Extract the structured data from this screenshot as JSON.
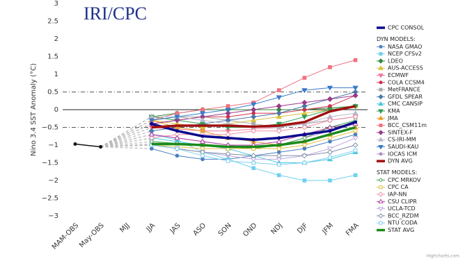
{
  "chart_data": {
    "type": "line",
    "title": "IRI/CPC",
    "y_label": "Nino 3.4 SST Anomaly (°C)",
    "credits": "Highcharts.com",
    "legend_headings": [
      "DYN MODELS:",
      "STAT MODELS:"
    ],
    "categories": [
      "MAM-OBS",
      "May-OBS",
      "MJJ",
      "JJA",
      "JAS",
      "ASO",
      "SON",
      "OND",
      "NDJ",
      "DJF",
      "JFM",
      "FMA"
    ],
    "ylim": [
      -3,
      3
    ],
    "yticks": [
      3,
      2.5,
      2,
      1.5,
      1,
      0.5,
      0,
      {
        "value": -0.5,
        "label": "−0.5"
      },
      {
        "value": -1,
        "label": "−1"
      },
      {
        "value": -1.5,
        "label": "−1.5"
      },
      {
        "value": -2,
        "label": "−2"
      },
      {
        "value": -2.5,
        "label": "−2.5"
      },
      {
        "value": -3,
        "label": "−3"
      }
    ],
    "plot_lines": [
      0.5,
      0,
      -0.5
    ],
    "observed": {
      "color": "#111111",
      "values": [
        -0.97,
        -1.05,
        null,
        null,
        null,
        null,
        null,
        null,
        null,
        null,
        null,
        null
      ]
    },
    "series": [
      {
        "name": "CPC CONSOL",
        "color": "#0a0a8c",
        "width": 3.5,
        "marker": "circle",
        "values": [
          null,
          null,
          null,
          -0.4,
          -0.6,
          -0.75,
          -0.8,
          -0.85,
          -0.8,
          -0.7,
          -0.6,
          -0.35
        ]
      },
      {
        "name": "NASA GMAO",
        "color": "#4a7fc1",
        "marker": "circle",
        "values": [
          null,
          null,
          null,
          -1.1,
          -1.3,
          -1.4,
          -1.4,
          -1.3,
          -1.2,
          -1.1,
          -0.9,
          -0.7
        ]
      },
      {
        "name": "NCEP CFSv2",
        "color": "#6fd0ef",
        "marker": "square",
        "values": [
          null,
          null,
          null,
          -0.7,
          -0.85,
          -1.2,
          -1.4,
          -1.65,
          -1.85,
          -2.0,
          -2.0,
          -1.85
        ]
      },
      {
        "name": "LDEO",
        "color": "#2e8b3a",
        "marker": "diamond",
        "values": [
          null,
          null,
          null,
          -0.2,
          -0.1,
          0,
          0,
          0,
          0,
          0,
          0.05,
          0.1
        ]
      },
      {
        "name": "AUS-ACCESS",
        "color": "#d8c23a",
        "marker": "triangle",
        "values": [
          null,
          null,
          null,
          -0.3,
          -0.4,
          -0.5,
          -0.4,
          -0.3,
          -0.2,
          -0.1,
          0,
          0.1
        ]
      },
      {
        "name": "ECMWF",
        "color": "#f07a9a",
        "marker": "triangle-down",
        "values": [
          null,
          null,
          null,
          -0.5,
          -0.55,
          -0.6,
          -0.6,
          -0.55,
          -0.5,
          -0.4,
          -0.3,
          -0.2
        ]
      },
      {
        "name": "COLA CCSM4",
        "color": "#d0304a",
        "marker": "circle",
        "values": [
          null,
          null,
          null,
          -0.4,
          -0.3,
          -0.2,
          -0.2,
          -0.1,
          -0.1,
          0,
          0.1,
          0.4
        ]
      },
      {
        "name": "MetFRANCE",
        "color": "#a8a8a8",
        "marker": "square",
        "values": [
          null,
          null,
          null,
          -0.3,
          -0.2,
          -0.2,
          -0.3,
          -0.4,
          -0.5,
          -0.4,
          -0.3,
          -0.2
        ]
      },
      {
        "name": "GFDL SPEAR",
        "color": "#4b78a8",
        "marker": "diamond",
        "values": [
          null,
          null,
          null,
          -0.6,
          -0.5,
          -0.4,
          -0.3,
          -0.2,
          -0.1,
          0.1,
          0.3,
          0.5
        ]
      },
      {
        "name": "CMC CANSIP",
        "color": "#4cc8e0",
        "marker": "triangle",
        "values": [
          null,
          null,
          null,
          -0.8,
          -0.9,
          -1.0,
          -1.1,
          -1.3,
          -1.5,
          -1.5,
          -1.4,
          -1.2
        ]
      },
      {
        "name": "KMA",
        "color": "#2f9a50",
        "marker": "triangle-down",
        "values": [
          null,
          null,
          null,
          -0.2,
          -0.3,
          -0.4,
          -0.5,
          -0.5,
          -0.4,
          -0.2,
          0,
          0.1
        ]
      },
      {
        "name": "JMA",
        "color": "#e8a030",
        "marker": "triangle",
        "values": [
          null,
          null,
          null,
          -0.3,
          -0.5,
          -0.6,
          -0.8,
          -0.9,
          -1.0,
          -0.9,
          -0.7,
          -0.5
        ]
      },
      {
        "name": "BCC_CSM11m",
        "color": "#f07080",
        "marker": "square",
        "values": [
          null,
          null,
          null,
          -0.3,
          -0.1,
          0,
          0.1,
          0.2,
          0.55,
          0.9,
          1.2,
          1.4
        ]
      },
      {
        "name": "SINTEX-F",
        "color": "#9a3a8a",
        "marker": "diamond",
        "values": [
          null,
          null,
          null,
          -0.4,
          -0.3,
          -0.2,
          -0.1,
          0,
          0.1,
          0.2,
          0.3,
          0.4
        ]
      },
      {
        "name": "CS-IRI-MM",
        "color": "#b8b8c8",
        "marker": "triangle",
        "values": [
          null,
          null,
          null,
          -0.2,
          -0.2,
          -0.3,
          -0.4,
          -0.5,
          -0.5,
          -0.4,
          -0.2,
          -0.1
        ]
      },
      {
        "name": "SAUDI-KAU",
        "color": "#3a7ac8",
        "marker": "triangle-down",
        "values": [
          null,
          null,
          null,
          -0.3,
          -0.2,
          -0.1,
          0,
          0.15,
          0.35,
          0.55,
          0.62,
          0.62
        ]
      },
      {
        "name": "IOCAS ICM",
        "color": "#b090d0",
        "marker": "circle",
        "values": [
          null,
          null,
          null,
          -0.7,
          -0.8,
          -0.9,
          -1.0,
          -1.1,
          -1.0,
          -0.8,
          -0.6,
          -0.4
        ]
      },
      {
        "name": "DYN AVG",
        "color": "#a01010",
        "width": 3.5,
        "values": [
          null,
          null,
          null,
          -0.5,
          -0.45,
          -0.45,
          -0.45,
          -0.48,
          -0.45,
          -0.35,
          -0.05,
          0.1
        ]
      },
      {
        "name": "CPC MRKOV",
        "color": "#3aa04a",
        "marker": "circle",
        "hollow": true,
        "values": [
          null,
          null,
          null,
          -0.9,
          -0.95,
          -1.0,
          -1.05,
          -1.1,
          -1.0,
          -0.8,
          -0.5,
          -0.3
        ]
      },
      {
        "name": "CPC CA",
        "color": "#e0c040",
        "marker": "square",
        "hollow": true,
        "values": [
          null,
          null,
          null,
          -1.0,
          -1.05,
          -1.1,
          -1.1,
          -1.1,
          -1.1,
          -1.0,
          -0.8,
          -0.6
        ]
      },
      {
        "name": "IAP-NN",
        "color": "#f090a8",
        "marker": "diamond",
        "hollow": true,
        "values": [
          null,
          null,
          null,
          -0.8,
          -0.7,
          -0.7,
          -0.7,
          -0.6,
          -0.6,
          -0.5,
          -0.3,
          -0.2
        ]
      },
      {
        "name": "CSU CLIPR",
        "color": "#b040a0",
        "marker": "triangle",
        "hollow": true,
        "values": [
          null,
          null,
          null,
          -0.7,
          -0.8,
          -0.9,
          -1.0,
          -1.0,
          -0.9,
          -0.7,
          -0.5,
          -0.4
        ]
      },
      {
        "name": "UCLA-TCD",
        "color": "#c0a8e0",
        "marker": "triangle-down",
        "hollow": true,
        "values": [
          null,
          null,
          null,
          -1.0,
          -1.1,
          -1.2,
          -1.3,
          -1.4,
          -1.4,
          -1.3,
          -1.1,
          -0.8
        ]
      },
      {
        "name": "BCC_RZDM",
        "color": "#8090a8",
        "marker": "diamond",
        "hollow": true,
        "values": [
          null,
          null,
          null,
          -1.0,
          -1.1,
          -1.2,
          -1.25,
          -1.3,
          -1.3,
          -1.3,
          -1.2,
          -1.0
        ]
      },
      {
        "name": "NTU CODA",
        "color": "#80d0f0",
        "marker": "square",
        "hollow": true,
        "values": [
          null,
          null,
          null,
          -1.0,
          -1.1,
          -1.3,
          -1.45,
          -1.5,
          -1.55,
          -1.5,
          -1.35,
          -1.15
        ]
      },
      {
        "name": "STAT AVG",
        "color": "#1a8a1a",
        "width": 3.5,
        "values": [
          null,
          null,
          null,
          -0.97,
          -0.97,
          -1.0,
          -1.05,
          -1.05,
          -1.0,
          -0.9,
          -0.7,
          -0.5
        ]
      }
    ]
  }
}
